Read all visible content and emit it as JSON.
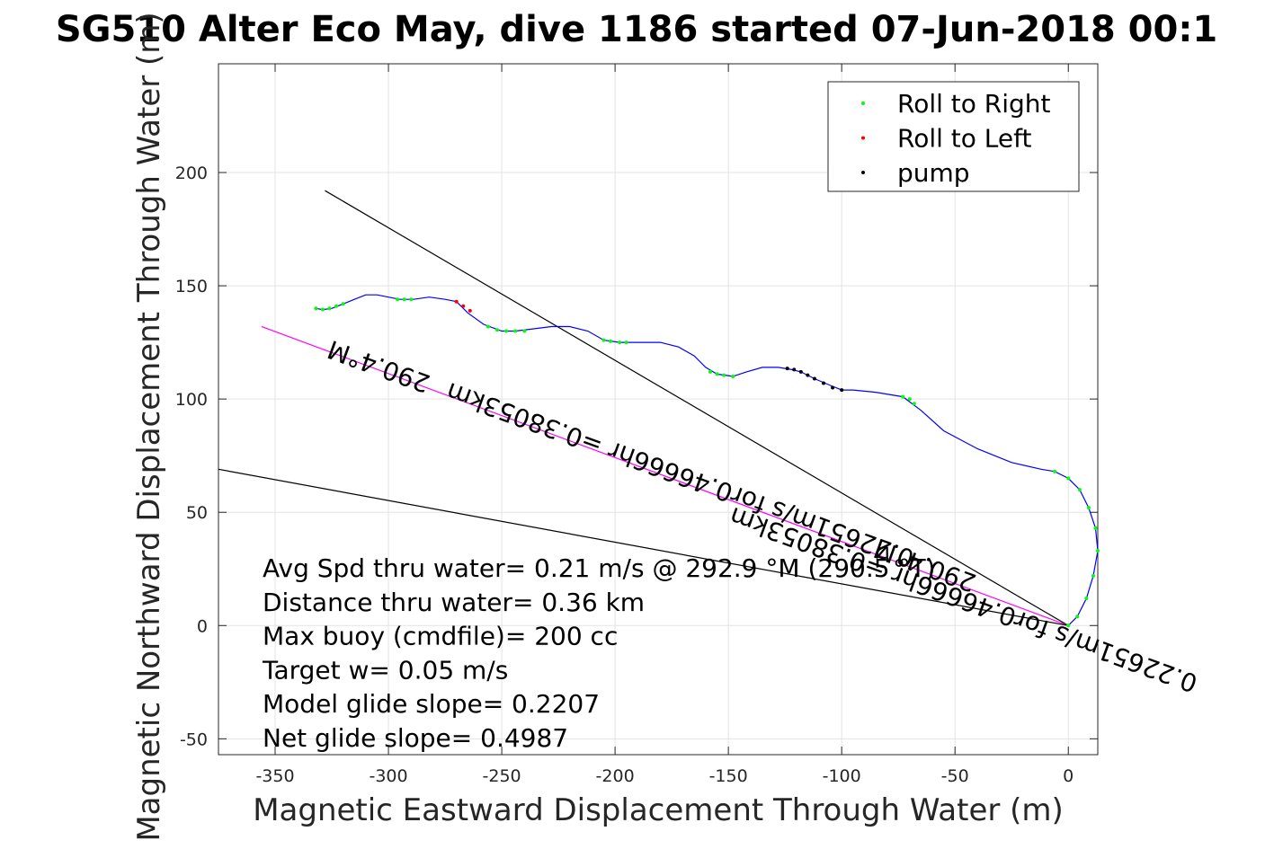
{
  "chart_data": {
    "type": "line",
    "title": "SG510 Alter Eco May, dive 1186 started 07-Jun-2018 00:1",
    "xlabel": "Magnetic Eastward Displacement Through Water (m)",
    "ylabel": "Magnetic Northward Displacement Through Water (m)",
    "xlim": [
      -375,
      13
    ],
    "ylim": [
      -57,
      248
    ],
    "xticks": [
      -350,
      -300,
      -250,
      -200,
      -150,
      -100,
      -50,
      0
    ],
    "yticks": [
      -50,
      0,
      50,
      100,
      150,
      200
    ],
    "grid": true,
    "legend_position": "top-right",
    "legend": [
      {
        "label": "Roll to Right",
        "color": "#00ff00"
      },
      {
        "label": "Roll to Left",
        "color": "#ff0000"
      },
      {
        "label": "pump",
        "color": "#000000"
      }
    ],
    "track": {
      "name": "glider track",
      "color": "#0000ff",
      "points": [
        [
          0,
          0
        ],
        [
          4,
          4
        ],
        [
          8,
          12
        ],
        [
          11,
          22
        ],
        [
          13,
          33
        ],
        [
          12,
          43
        ],
        [
          9,
          52
        ],
        [
          5,
          60
        ],
        [
          0,
          65
        ],
        [
          -6,
          68
        ],
        [
          -12,
          69
        ],
        [
          -25,
          72
        ],
        [
          -40,
          78
        ],
        [
          -55,
          86
        ],
        [
          -65,
          95
        ],
        [
          -73,
          101
        ],
        [
          -85,
          103
        ],
        [
          -95,
          104
        ],
        [
          -100,
          104
        ],
        [
          -105,
          106
        ],
        [
          -112,
          109
        ],
        [
          -118,
          112
        ],
        [
          -122,
          113
        ],
        [
          -128,
          114
        ],
        [
          -135,
          114
        ],
        [
          -142,
          112
        ],
        [
          -148,
          110
        ],
        [
          -155,
          111
        ],
        [
          -160,
          114
        ],
        [
          -165,
          119
        ],
        [
          -172,
          123
        ],
        [
          -180,
          125
        ],
        [
          -190,
          125
        ],
        [
          -198,
          125
        ],
        [
          -205,
          126
        ],
        [
          -212,
          130
        ],
        [
          -220,
          132
        ],
        [
          -228,
          132
        ],
        [
          -236,
          131
        ],
        [
          -244,
          130
        ],
        [
          -250,
          130
        ],
        [
          -258,
          133
        ],
        [
          -265,
          138
        ],
        [
          -270,
          143
        ],
        [
          -275,
          144
        ],
        [
          -282,
          145
        ],
        [
          -289,
          144
        ],
        [
          -295,
          144
        ],
        [
          -300,
          145
        ],
        [
          -305,
          146
        ],
        [
          -310,
          146
        ],
        [
          -315,
          144
        ],
        [
          -320,
          142
        ],
        [
          -325,
          140
        ],
        [
          -329,
          139.5
        ],
        [
          -332,
          140
        ]
      ],
      "roll_right": [
        [
          0,
          0
        ],
        [
          4,
          4
        ],
        [
          8,
          12
        ],
        [
          11,
          22
        ],
        [
          13,
          33
        ],
        [
          12,
          43
        ],
        [
          9,
          52
        ],
        [
          5,
          60
        ],
        [
          0,
          65
        ],
        [
          -6,
          68
        ],
        [
          -68,
          98
        ],
        [
          -70,
          100
        ],
        [
          -73,
          101
        ],
        [
          -148,
          110
        ],
        [
          -152,
          110.5
        ],
        [
          -155,
          111
        ],
        [
          -158,
          112
        ],
        [
          -195,
          125
        ],
        [
          -198,
          125
        ],
        [
          -202,
          125.5
        ],
        [
          -205,
          126
        ],
        [
          -240,
          130
        ],
        [
          -244,
          130
        ],
        [
          -248,
          130
        ],
        [
          -252,
          130.5
        ],
        [
          -256,
          132
        ],
        [
          -290,
          144
        ],
        [
          -293,
          144
        ],
        [
          -296,
          144
        ],
        [
          -320,
          142
        ],
        [
          -323,
          141
        ],
        [
          -326,
          140
        ],
        [
          -329,
          139.5
        ],
        [
          -332,
          140
        ]
      ],
      "roll_left": [
        [
          -270,
          143
        ],
        [
          -267,
          141
        ],
        [
          -264,
          139
        ]
      ],
      "pump": [
        [
          -100,
          104
        ],
        [
          -104,
          105
        ],
        [
          -108,
          107
        ],
        [
          -112,
          109
        ],
        [
          -115,
          110.5
        ],
        [
          -118,
          112
        ],
        [
          -121,
          113
        ],
        [
          -124,
          113.5
        ]
      ]
    },
    "lines": [
      {
        "name": "heading 290.4°M (upper)",
        "color": "#000000",
        "points": [
          [
            0,
            0
          ],
          [
            -328,
            192
          ]
        ]
      },
      {
        "name": "mean heading line",
        "color": "#ff00ff",
        "points": [
          [
            0,
            0
          ],
          [
            -356,
            132
          ]
        ]
      },
      {
        "name": "heading 290.4°M (lower)",
        "color": "#000000",
        "points": [
          [
            0,
            0
          ],
          [
            -375,
            69
          ]
        ]
      }
    ],
    "annotations": [
      {
        "text": "290.4°M",
        "x": -303,
        "y": 118,
        "rotation_deg": 200
      },
      {
        "text": "0.22651m/s for0.46666hr =0.38053km",
        "x": -170,
        "y": 70,
        "rotation_deg": 200
      },
      {
        "text": "290.4°M",
        "x": -62,
        "y": 30,
        "rotation_deg": 200
      },
      {
        "text": "0.22651m/s for0.46666hr =0.38053km",
        "x": -45,
        "y": 15,
        "rotation_deg": 200
      }
    ],
    "stats": [
      "Avg Spd thru water=  0.21 m/s @ 292.9 °M (290.5 °T)",
      "Distance thru water=  0.36 km",
      "Max buoy (cmdfile)= 200 cc",
      "Target w= 0.05 m/s",
      "Model glide slope= 0.2207",
      "Net glide slope= 0.4987"
    ]
  }
}
